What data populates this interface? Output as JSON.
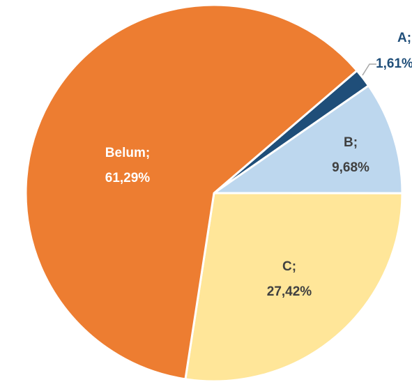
{
  "chart_data": {
    "type": "pie",
    "categories": [
      "A;",
      "B;",
      "C;",
      "Belum;"
    ],
    "values": [
      1.61,
      9.68,
      27.42,
      61.29
    ],
    "value_labels": [
      "1,61%",
      "9,68%",
      "27,42%",
      "61,29%"
    ],
    "colors": [
      "#1F4E79",
      "#BDD7EE",
      "#FFE699",
      "#ED7D31"
    ],
    "label_colors": [
      "#1F4E79",
      "#404040",
      "#404040",
      "#FFFFFF"
    ]
  }
}
